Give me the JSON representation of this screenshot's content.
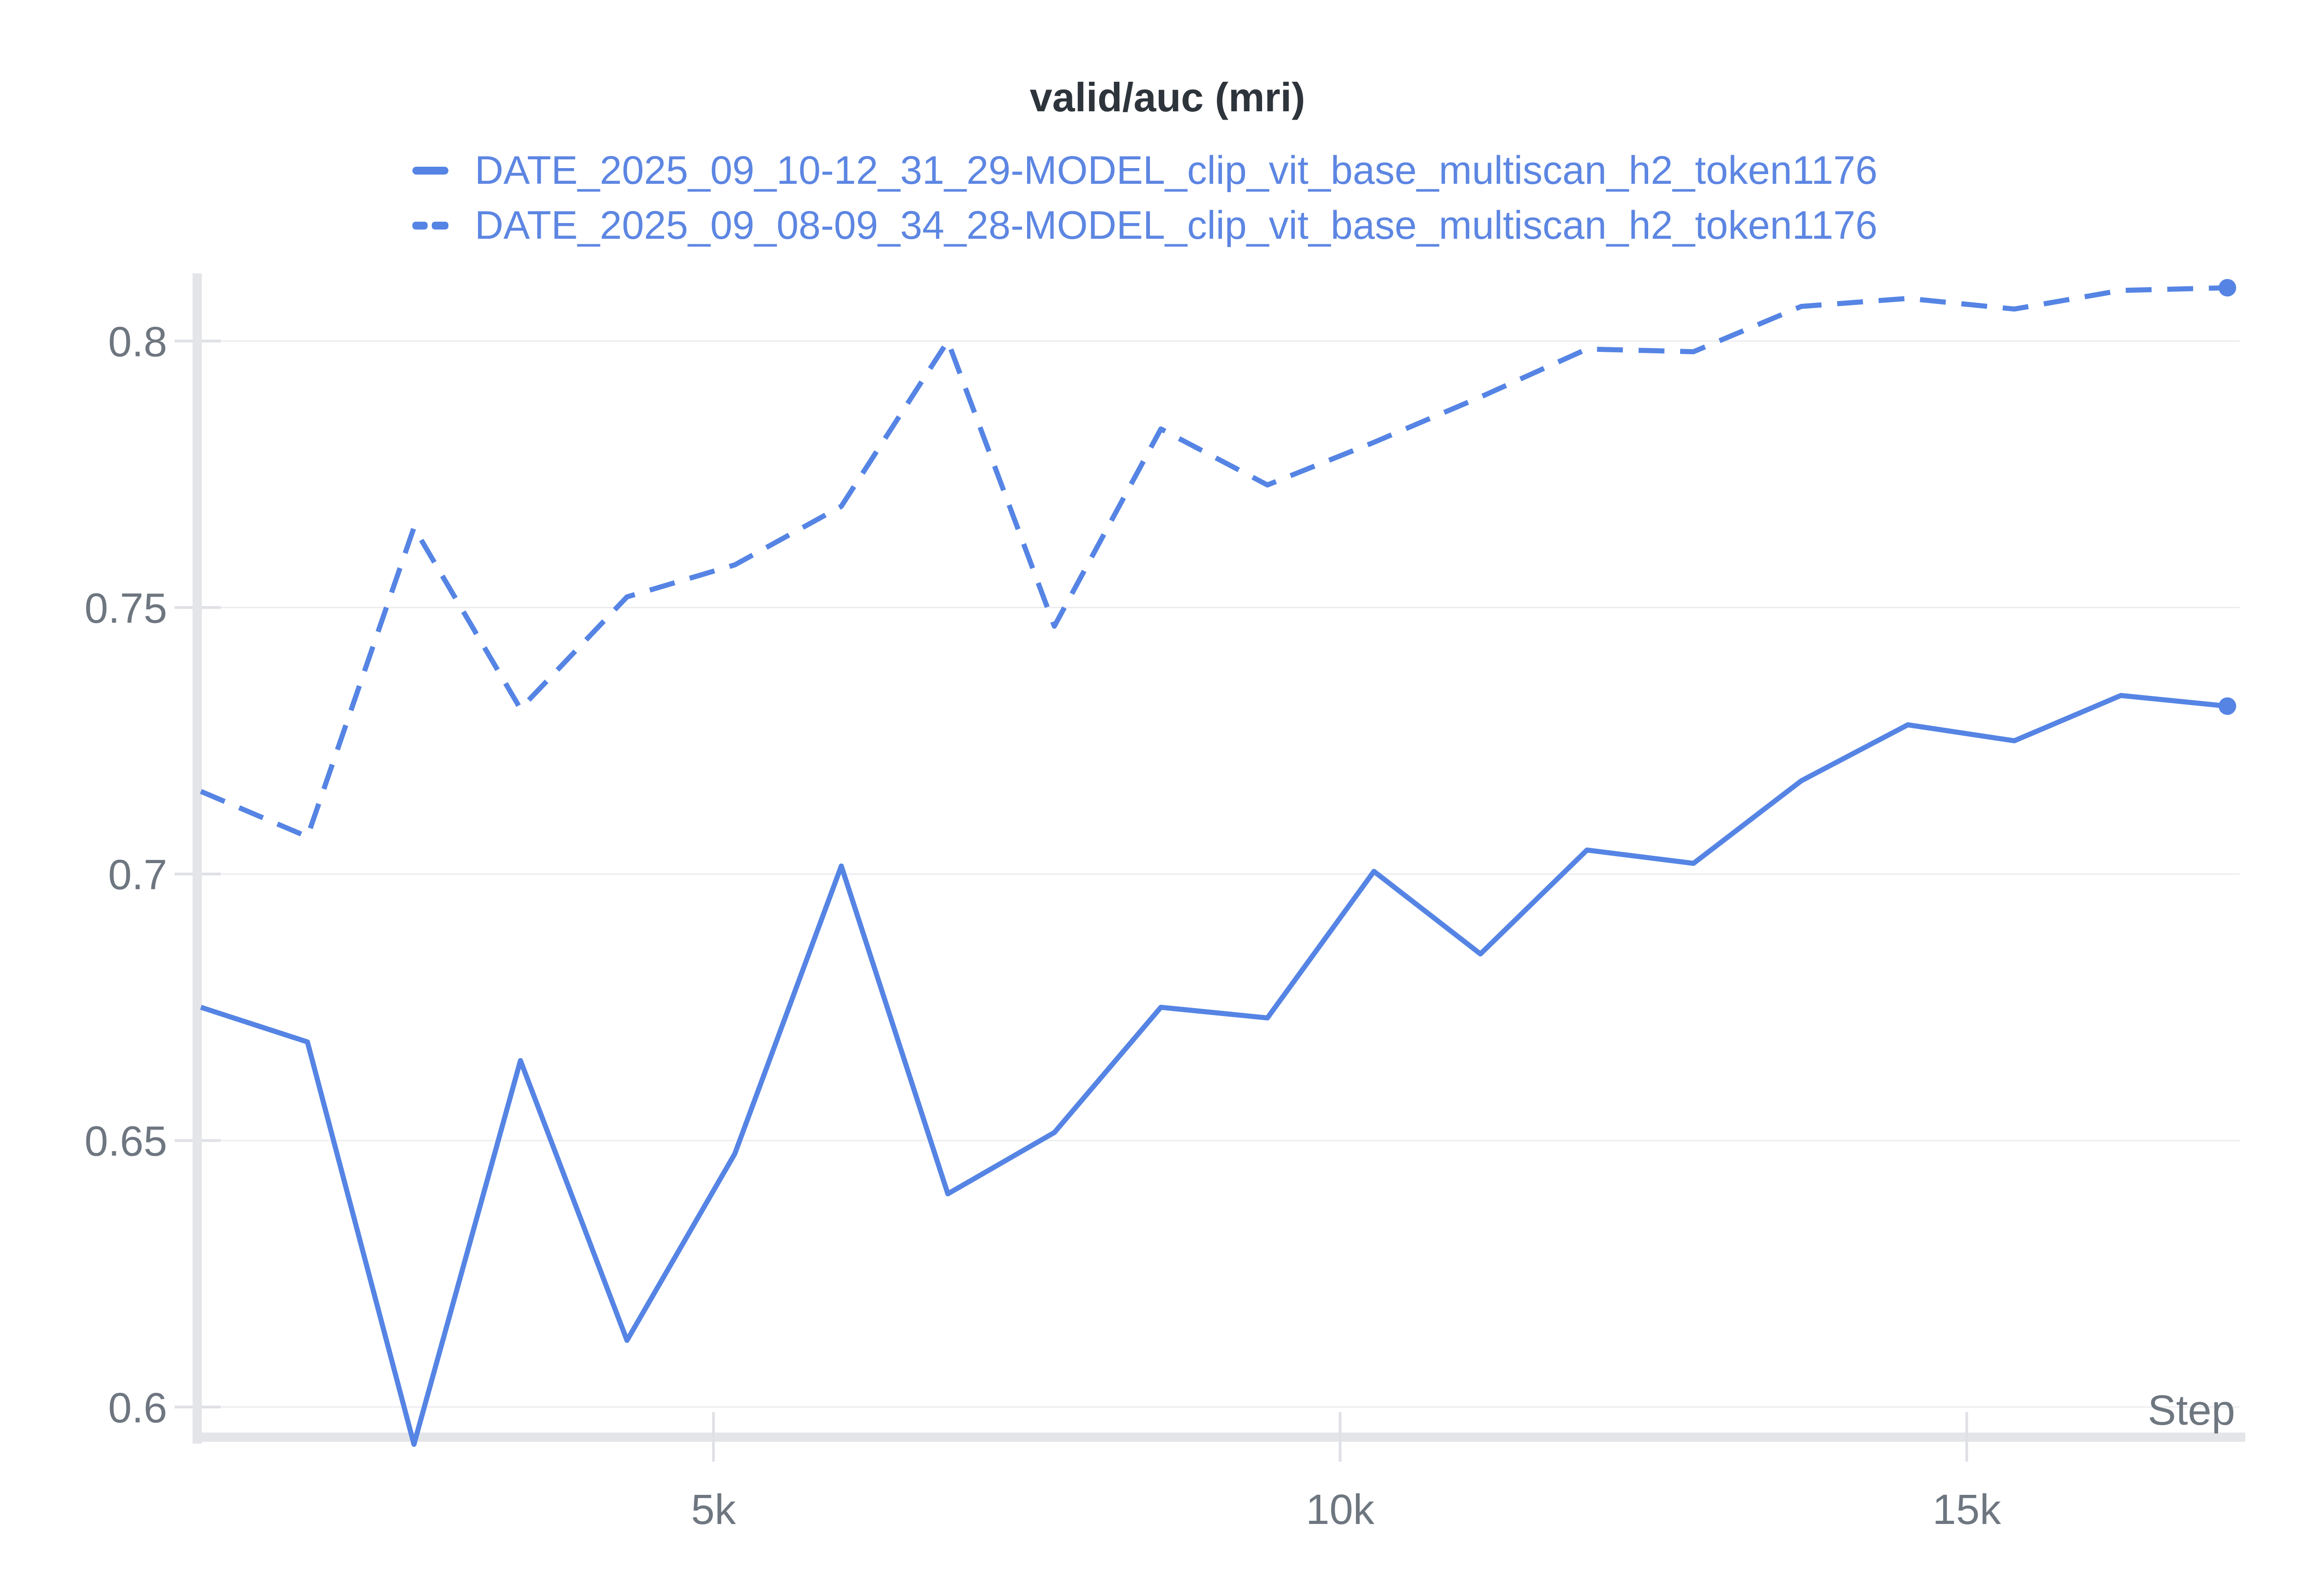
{
  "title": "valid/auc (mri)",
  "legend": {
    "items": [
      {
        "label": "DATE_2025_09_10-12_31_29-MODEL_clip_vit_base_multiscan_h2_token1176",
        "line_style": "solid"
      },
      {
        "label": "DATE_2025_09_08-09_34_28-MODEL_clip_vit_base_multiscan_h2_token1176",
        "line_style": "dashed"
      }
    ]
  },
  "colors": {
    "series_blue": "#5584e4",
    "legend_text": "#5d86e2",
    "title_text": "#2e343b",
    "axis_text": "#6e7680",
    "gridline": "#ededef",
    "tick_line": "#dfe1e6",
    "axis_line": "#e4e5e8"
  },
  "chart_data": {
    "type": "line",
    "title": "valid/auc (mri)",
    "xlabel": "Step",
    "ylabel": "",
    "grid": "horizontal",
    "legend_position": "top-left",
    "x_axis": {
      "range": [
        910,
        17160
      ],
      "ticks": [
        {
          "value": 5000,
          "label": "5k"
        },
        {
          "value": 10000,
          "label": "10k"
        },
        {
          "value": 15000,
          "label": "15k"
        }
      ]
    },
    "y_axis": {
      "range": [
        0.594,
        0.812
      ],
      "ticks": [
        {
          "value": 0.6,
          "label": "0.6"
        },
        {
          "value": 0.65,
          "label": "0.65"
        },
        {
          "value": 0.7,
          "label": "0.7"
        },
        {
          "value": 0.75,
          "label": "0.75"
        },
        {
          "value": 0.8,
          "label": "0.8"
        }
      ]
    },
    "x": [
      910,
      1760,
      2610,
      3460,
      4310,
      5170,
      6020,
      6870,
      7720,
      8570,
      9420,
      10270,
      11120,
      11970,
      12820,
      13680,
      14530,
      15380,
      16230,
      17080
    ],
    "series": [
      {
        "name": "DATE_2025_09_10-12_31_29-MODEL_clip_vit_base_multiscan_h2_token1176",
        "style": "solid",
        "end_marker": true,
        "values": [
          0.675,
          0.6685,
          0.593,
          0.665,
          0.6125,
          0.6475,
          0.7015,
          0.64,
          0.6515,
          0.675,
          0.673,
          0.7005,
          0.685,
          0.7045,
          0.702,
          0.7175,
          0.728,
          0.725,
          0.7335,
          0.7315
        ]
      },
      {
        "name": "DATE_2025_09_08-09_34_28-MODEL_clip_vit_base_multiscan_h2_token1176",
        "style": "dashed",
        "end_marker": true,
        "values": [
          0.7155,
          0.707,
          0.765,
          0.731,
          0.752,
          0.758,
          0.769,
          0.8,
          0.7465,
          0.7835,
          0.773,
          0.781,
          0.7895,
          0.7985,
          0.798,
          0.8065,
          0.808,
          0.806,
          0.8095,
          0.81
        ]
      }
    ]
  }
}
